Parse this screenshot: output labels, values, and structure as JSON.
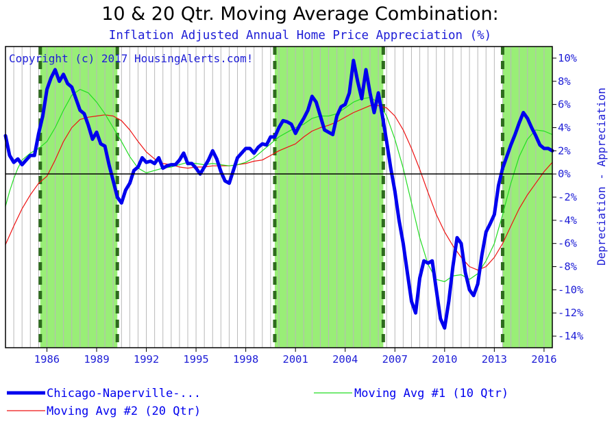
{
  "chart_data": {
    "type": "line",
    "title": "10 & 20 Qtr. Moving Average Combination:",
    "subtitle": "Inflation Adjusted Annual Home Price Appreciation (%)",
    "copyright": "Copyright (c) 2017 HousingAlerts.com!",
    "ylabel": "Depreciation - Appreciation",
    "xlim": [
      1983.5,
      2016.5
    ],
    "ylim": [
      -15,
      11
    ],
    "xticks": [
      1986,
      1989,
      1992,
      1995,
      1998,
      2001,
      2004,
      2007,
      2010,
      2013,
      2016
    ],
    "xtick_labels": [
      "1986",
      "1989",
      "1992",
      "1995",
      "1998",
      "2001",
      "2004",
      "2007",
      "2010",
      "2013",
      "2016"
    ],
    "yticks": [
      10,
      8,
      6,
      4,
      2,
      0,
      -2,
      -4,
      -6,
      -8,
      -10,
      -12,
      -14
    ],
    "ytick_labels": [
      "10%",
      "8%",
      "6%",
      "4%",
      "2%",
      "0%",
      "-2%",
      "-4%",
      "-6%",
      "-8%",
      "-10%",
      "-12%",
      "-14%"
    ],
    "shaded_periods": [
      [
        1985.6,
        1990.25
      ],
      [
        1999.75,
        2006.3
      ],
      [
        2013.5,
        2016.5
      ]
    ],
    "signal_lines": [
      1985.6,
      1990.25,
      1999.75,
      2006.3,
      2013.5
    ],
    "colors": {
      "shade": "#99ee77",
      "signal": "#2e6b1e",
      "series_main": "#0000ee",
      "series_ma10": "#22dd22",
      "series_ma20": "#ee1111",
      "grid": "#b8b8b8",
      "text": "#1c1cd6"
    },
    "series": [
      {
        "name": "Chicago-Naperville-...",
        "points": [
          [
            1983.5,
            3.3
          ],
          [
            1983.75,
            1.6
          ],
          [
            1984.0,
            1.0
          ],
          [
            1984.25,
            1.3
          ],
          [
            1984.5,
            0.8
          ],
          [
            1984.75,
            1.2
          ],
          [
            1985.0,
            1.6
          ],
          [
            1985.25,
            1.6
          ],
          [
            1985.5,
            3.5
          ],
          [
            1985.75,
            5.0
          ],
          [
            1986.0,
            7.3
          ],
          [
            1986.25,
            8.3
          ],
          [
            1986.5,
            9.0
          ],
          [
            1986.75,
            8.0
          ],
          [
            1987.0,
            8.6
          ],
          [
            1987.25,
            7.8
          ],
          [
            1987.5,
            7.5
          ],
          [
            1987.75,
            6.5
          ],
          [
            1988.0,
            5.5
          ],
          [
            1988.25,
            5.2
          ],
          [
            1988.5,
            4.2
          ],
          [
            1988.75,
            3.0
          ],
          [
            1989.0,
            3.6
          ],
          [
            1989.25,
            2.6
          ],
          [
            1989.5,
            2.4
          ],
          [
            1989.75,
            0.8
          ],
          [
            1990.0,
            -0.6
          ],
          [
            1990.25,
            -2.0
          ],
          [
            1990.5,
            -2.5
          ],
          [
            1990.75,
            -1.4
          ],
          [
            1991.0,
            -0.8
          ],
          [
            1991.25,
            0.3
          ],
          [
            1991.5,
            0.6
          ],
          [
            1991.75,
            1.4
          ],
          [
            1992.0,
            1.0
          ],
          [
            1992.25,
            1.1
          ],
          [
            1992.5,
            0.9
          ],
          [
            1992.75,
            1.4
          ],
          [
            1993.0,
            0.5
          ],
          [
            1993.25,
            0.7
          ],
          [
            1993.5,
            0.8
          ],
          [
            1993.75,
            0.8
          ],
          [
            1994.0,
            1.2
          ],
          [
            1994.25,
            1.8
          ],
          [
            1994.5,
            0.9
          ],
          [
            1994.75,
            0.9
          ],
          [
            1995.0,
            0.5
          ],
          [
            1995.25,
            0.0
          ],
          [
            1995.5,
            0.6
          ],
          [
            1995.75,
            1.2
          ],
          [
            1996.0,
            2.0
          ],
          [
            1996.25,
            1.3
          ],
          [
            1996.5,
            0.2
          ],
          [
            1996.75,
            -0.6
          ],
          [
            1997.0,
            -0.8
          ],
          [
            1997.25,
            0.3
          ],
          [
            1997.5,
            1.4
          ],
          [
            1997.75,
            1.8
          ],
          [
            1998.0,
            2.2
          ],
          [
            1998.25,
            2.2
          ],
          [
            1998.5,
            1.8
          ],
          [
            1998.75,
            2.3
          ],
          [
            1999.0,
            2.6
          ],
          [
            1999.25,
            2.5
          ],
          [
            1999.5,
            3.2
          ],
          [
            1999.75,
            3.2
          ],
          [
            2000.0,
            4.0
          ],
          [
            2000.25,
            4.6
          ],
          [
            2000.5,
            4.5
          ],
          [
            2000.75,
            4.3
          ],
          [
            2001.0,
            3.5
          ],
          [
            2001.25,
            4.2
          ],
          [
            2001.5,
            4.8
          ],
          [
            2001.75,
            5.5
          ],
          [
            2002.0,
            6.7
          ],
          [
            2002.25,
            6.2
          ],
          [
            2002.5,
            5.0
          ],
          [
            2002.75,
            3.8
          ],
          [
            2003.0,
            3.6
          ],
          [
            2003.25,
            3.4
          ],
          [
            2003.5,
            5.0
          ],
          [
            2003.75,
            5.8
          ],
          [
            2004.0,
            6.0
          ],
          [
            2004.25,
            7.0
          ],
          [
            2004.5,
            9.8
          ],
          [
            2004.75,
            8.0
          ],
          [
            2005.0,
            6.5
          ],
          [
            2005.25,
            9.0
          ],
          [
            2005.5,
            7.0
          ],
          [
            2005.75,
            5.3
          ],
          [
            2006.0,
            7.0
          ],
          [
            2006.25,
            5.0
          ],
          [
            2006.5,
            2.8
          ],
          [
            2006.75,
            0.5
          ],
          [
            2007.0,
            -1.5
          ],
          [
            2007.25,
            -4.0
          ],
          [
            2007.5,
            -6.0
          ],
          [
            2007.75,
            -8.5
          ],
          [
            2008.0,
            -11.0
          ],
          [
            2008.25,
            -12.0
          ],
          [
            2008.5,
            -9.0
          ],
          [
            2008.75,
            -7.5
          ],
          [
            2009.0,
            -7.7
          ],
          [
            2009.25,
            -7.5
          ],
          [
            2009.5,
            -10.0
          ],
          [
            2009.75,
            -12.5
          ],
          [
            2010.0,
            -13.3
          ],
          [
            2010.25,
            -11.0
          ],
          [
            2010.5,
            -8.0
          ],
          [
            2010.75,
            -5.5
          ],
          [
            2011.0,
            -6.0
          ],
          [
            2011.25,
            -8.5
          ],
          [
            2011.5,
            -10.0
          ],
          [
            2011.75,
            -10.5
          ],
          [
            2012.0,
            -9.5
          ],
          [
            2012.25,
            -7.0
          ],
          [
            2012.5,
            -5.0
          ],
          [
            2012.75,
            -4.3
          ],
          [
            2013.0,
            -3.5
          ],
          [
            2013.25,
            -1.0
          ],
          [
            2013.5,
            0.5
          ],
          [
            2013.75,
            1.5
          ],
          [
            2014.0,
            2.5
          ],
          [
            2014.25,
            3.4
          ],
          [
            2014.5,
            4.4
          ],
          [
            2014.75,
            5.3
          ],
          [
            2015.0,
            4.8
          ],
          [
            2015.25,
            4.0
          ],
          [
            2015.5,
            3.3
          ],
          [
            2015.75,
            2.5
          ],
          [
            2016.0,
            2.2
          ],
          [
            2016.25,
            2.2
          ],
          [
            2016.5,
            2.0
          ]
        ]
      },
      {
        "name": "Moving Avg #1 (10 Qtr)",
        "points": [
          [
            1983.5,
            -2.8
          ],
          [
            1983.75,
            -1.5
          ],
          [
            1984.0,
            -0.4
          ],
          [
            1984.25,
            0.5
          ],
          [
            1984.5,
            1.2
          ],
          [
            1984.75,
            1.5
          ],
          [
            1985.0,
            1.8
          ],
          [
            1985.5,
            2.2
          ],
          [
            1986.0,
            2.8
          ],
          [
            1986.5,
            4.0
          ],
          [
            1987.0,
            5.5
          ],
          [
            1987.5,
            6.8
          ],
          [
            1988.0,
            7.3
          ],
          [
            1988.5,
            7.0
          ],
          [
            1989.0,
            6.2
          ],
          [
            1989.5,
            5.2
          ],
          [
            1990.0,
            4.0
          ],
          [
            1990.5,
            2.8
          ],
          [
            1991.0,
            1.5
          ],
          [
            1991.5,
            0.5
          ],
          [
            1992.0,
            0.1
          ],
          [
            1992.5,
            0.3
          ],
          [
            1993.0,
            0.5
          ],
          [
            1993.5,
            0.6
          ],
          [
            1994.0,
            0.8
          ],
          [
            1994.5,
            1.0
          ],
          [
            1995.0,
            0.9
          ],
          [
            1995.5,
            0.8
          ],
          [
            1996.0,
            0.9
          ],
          [
            1996.5,
            0.8
          ],
          [
            1997.0,
            0.7
          ],
          [
            1997.5,
            0.8
          ],
          [
            1998.0,
            1.0
          ],
          [
            1998.5,
            1.4
          ],
          [
            1999.0,
            2.0
          ],
          [
            1999.5,
            2.6
          ],
          [
            2000.0,
            3.2
          ],
          [
            2000.5,
            3.6
          ],
          [
            2001.0,
            4.0
          ],
          [
            2001.5,
            4.3
          ],
          [
            2002.0,
            4.8
          ],
          [
            2002.5,
            5.0
          ],
          [
            2003.0,
            5.0
          ],
          [
            2003.5,
            5.2
          ],
          [
            2004.0,
            5.7
          ],
          [
            2004.5,
            6.2
          ],
          [
            2005.0,
            6.5
          ],
          [
            2005.5,
            6.6
          ],
          [
            2006.0,
            6.2
          ],
          [
            2006.5,
            5.0
          ],
          [
            2007.0,
            3.0
          ],
          [
            2007.5,
            0.5
          ],
          [
            2008.0,
            -2.5
          ],
          [
            2008.5,
            -5.5
          ],
          [
            2009.0,
            -7.8
          ],
          [
            2009.5,
            -9.1
          ],
          [
            2010.0,
            -9.3
          ],
          [
            2010.5,
            -8.8
          ],
          [
            2011.0,
            -8.7
          ],
          [
            2011.5,
            -9.1
          ],
          [
            2012.0,
            -8.6
          ],
          [
            2012.5,
            -7.5
          ],
          [
            2013.0,
            -6.0
          ],
          [
            2013.5,
            -3.5
          ],
          [
            2014.0,
            -0.8
          ],
          [
            2014.5,
            1.5
          ],
          [
            2015.0,
            3.0
          ],
          [
            2015.5,
            3.8
          ],
          [
            2016.0,
            3.7
          ],
          [
            2016.5,
            3.4
          ]
        ]
      },
      {
        "name": "Moving Avg #2 (20 Qtr)",
        "points": [
          [
            1983.5,
            -6.1
          ],
          [
            1984.0,
            -4.5
          ],
          [
            1984.5,
            -3.0
          ],
          [
            1985.0,
            -1.8
          ],
          [
            1985.5,
            -0.8
          ],
          [
            1986.0,
            -0.2
          ],
          [
            1986.5,
            1.2
          ],
          [
            1987.0,
            2.8
          ],
          [
            1987.5,
            4.0
          ],
          [
            1988.0,
            4.7
          ],
          [
            1988.5,
            4.9
          ],
          [
            1989.0,
            5.0
          ],
          [
            1989.5,
            5.1
          ],
          [
            1990.0,
            5.0
          ],
          [
            1990.5,
            4.6
          ],
          [
            1991.0,
            3.8
          ],
          [
            1991.5,
            2.8
          ],
          [
            1992.0,
            1.9
          ],
          [
            1992.5,
            1.3
          ],
          [
            1993.0,
            0.9
          ],
          [
            1993.5,
            0.8
          ],
          [
            1994.0,
            0.6
          ],
          [
            1994.5,
            0.5
          ],
          [
            1995.0,
            0.6
          ],
          [
            1995.5,
            0.6
          ],
          [
            1996.0,
            0.7
          ],
          [
            1996.5,
            0.7
          ],
          [
            1997.0,
            0.7
          ],
          [
            1997.5,
            0.8
          ],
          [
            1998.0,
            0.9
          ],
          [
            1998.5,
            1.1
          ],
          [
            1999.0,
            1.2
          ],
          [
            1999.5,
            1.6
          ],
          [
            2000.0,
            2.0
          ],
          [
            2000.5,
            2.3
          ],
          [
            2001.0,
            2.6
          ],
          [
            2001.5,
            3.2
          ],
          [
            2002.0,
            3.7
          ],
          [
            2002.5,
            4.0
          ],
          [
            2003.0,
            4.2
          ],
          [
            2003.5,
            4.5
          ],
          [
            2004.0,
            4.9
          ],
          [
            2004.5,
            5.3
          ],
          [
            2005.0,
            5.6
          ],
          [
            2005.5,
            5.9
          ],
          [
            2006.0,
            5.9
          ],
          [
            2006.5,
            5.7
          ],
          [
            2007.0,
            5.0
          ],
          [
            2007.5,
            3.8
          ],
          [
            2008.0,
            2.2
          ],
          [
            2008.5,
            0.4
          ],
          [
            2009.0,
            -1.6
          ],
          [
            2009.5,
            -3.5
          ],
          [
            2010.0,
            -5.0
          ],
          [
            2010.5,
            -6.2
          ],
          [
            2011.0,
            -7.2
          ],
          [
            2011.5,
            -8.0
          ],
          [
            2012.0,
            -8.3
          ],
          [
            2012.5,
            -8.0
          ],
          [
            2013.0,
            -7.2
          ],
          [
            2013.5,
            -6.0
          ],
          [
            2014.0,
            -4.5
          ],
          [
            2014.5,
            -3.0
          ],
          [
            2015.0,
            -1.8
          ],
          [
            2015.5,
            -0.8
          ],
          [
            2016.0,
            0.2
          ],
          [
            2016.5,
            1.0
          ]
        ]
      }
    ],
    "legend": [
      {
        "label": "Chicago-Naperville-...",
        "color": "#0000ee",
        "width": 5
      },
      {
        "label": "Moving Avg #1 (10 Qtr)",
        "color": "#22dd22",
        "width": 1
      },
      {
        "label": "Moving Avg #2 (20 Qtr)",
        "color": "#ee1111",
        "width": 1
      }
    ]
  }
}
